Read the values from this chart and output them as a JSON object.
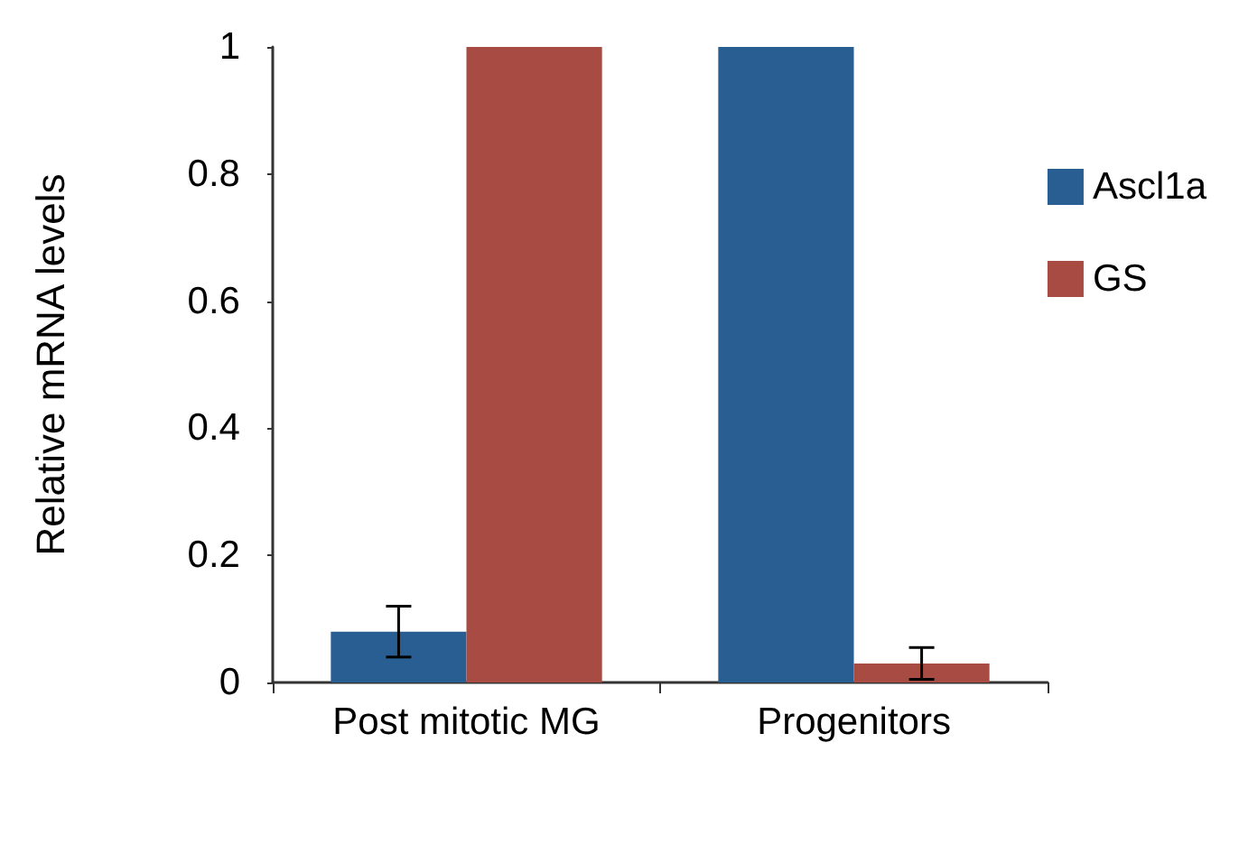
{
  "chart_data": {
    "type": "bar",
    "ylabel": "Relative mRNA levels",
    "categories": [
      "Post mitotic MG",
      "Progenitors"
    ],
    "series": [
      {
        "name": "Ascl1a",
        "color": "#285e92",
        "values": [
          0.08,
          1
        ],
        "errors": [
          0.04,
          null
        ]
      },
      {
        "name": "GS",
        "color": "#a84b43",
        "values": [
          1,
          0.03
        ],
        "errors": [
          null,
          0.025
        ]
      }
    ],
    "ylim": [
      0,
      1
    ],
    "yticks": [
      0,
      0.2,
      0.4,
      0.6,
      0.8,
      1
    ],
    "grid": false,
    "legend": "right"
  }
}
